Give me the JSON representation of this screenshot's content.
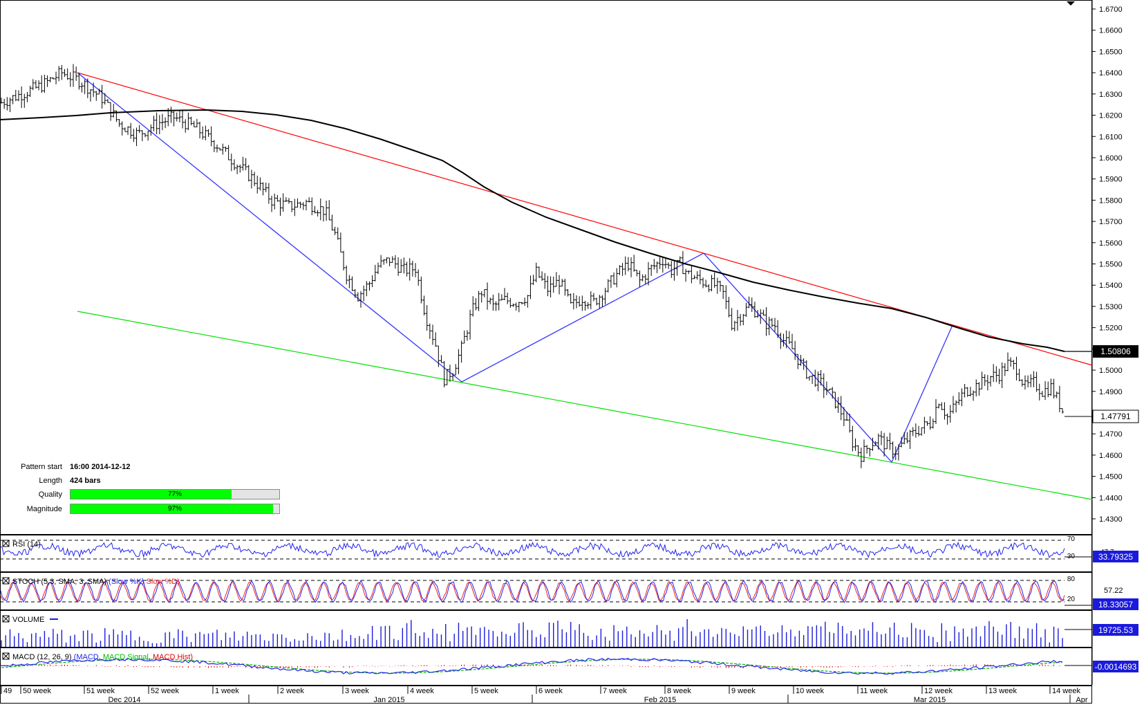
{
  "chart_data": {
    "type": "candlestick",
    "price": {
      "y_ticks": [
        "1.6700",
        "1.6600",
        "1.6500",
        "1.6400",
        "1.6300",
        "1.6200",
        "1.6100",
        "1.6000",
        "1.5900",
        "1.5800",
        "1.5700",
        "1.5600",
        "1.5500",
        "1.5400",
        "1.5300",
        "1.5200",
        "1.5100",
        "1.5000",
        "1.4900",
        "1.4800",
        "1.4700",
        "1.4600",
        "1.4500",
        "1.4400",
        "1.4300"
      ],
      "ylim": [
        1.425,
        1.672
      ],
      "sma_value": "1.50806",
      "last_price": "1.47791",
      "close_path": [
        [
          0,
          1.626
        ],
        [
          14,
          1.63
        ],
        [
          28,
          1.634
        ],
        [
          42,
          1.64
        ],
        [
          55,
          1.636
        ],
        [
          70,
          1.628
        ],
        [
          82,
          1.616
        ],
        [
          95,
          1.611
        ],
        [
          108,
          1.616
        ],
        [
          120,
          1.619
        ],
        [
          135,
          1.614
        ],
        [
          150,
          1.606
        ],
        [
          162,
          1.598
        ],
        [
          175,
          1.59
        ],
        [
          188,
          1.58
        ],
        [
          200,
          1.577
        ],
        [
          212,
          1.579
        ],
        [
          225,
          1.575
        ],
        [
          232,
          1.564
        ],
        [
          240,
          1.545
        ],
        [
          248,
          1.535
        ],
        [
          256,
          1.541
        ],
        [
          262,
          1.549
        ],
        [
          270,
          1.552
        ],
        [
          280,
          1.547
        ],
        [
          288,
          1.548
        ],
        [
          295,
          1.526
        ],
        [
          302,
          1.512
        ],
        [
          308,
          1.496
        ],
        [
          314,
          1.5
        ],
        [
          320,
          1.51
        ],
        [
          327,
          1.527
        ],
        [
          334,
          1.537
        ],
        [
          342,
          1.53
        ],
        [
          350,
          1.533
        ],
        [
          358,
          1.532
        ],
        [
          366,
          1.535
        ],
        [
          372,
          1.546
        ],
        [
          380,
          1.538
        ],
        [
          388,
          1.542
        ],
        [
          396,
          1.53
        ],
        [
          404,
          1.534
        ],
        [
          412,
          1.532
        ],
        [
          420,
          1.538
        ],
        [
          428,
          1.545
        ],
        [
          436,
          1.55
        ],
        [
          444,
          1.542
        ],
        [
          452,
          1.548
        ],
        [
          460,
          1.552
        ],
        [
          466,
          1.547
        ],
        [
          472,
          1.55
        ],
        [
          478,
          1.545
        ],
        [
          484,
          1.543
        ],
        [
          490,
          1.541
        ],
        [
          496,
          1.54
        ],
        [
          502,
          1.536
        ],
        [
          508,
          1.522
        ],
        [
          514,
          1.526
        ],
        [
          520,
          1.53
        ],
        [
          526,
          1.527
        ],
        [
          532,
          1.522
        ],
        [
          538,
          1.521
        ],
        [
          544,
          1.514
        ],
        [
          550,
          1.51
        ],
        [
          556,
          1.503
        ],
        [
          562,
          1.497
        ],
        [
          568,
          1.495
        ],
        [
          574,
          1.491
        ],
        [
          580,
          1.485
        ],
        [
          586,
          1.478
        ],
        [
          592,
          1.466
        ],
        [
          598,
          1.46
        ],
        [
          604,
          1.465
        ],
        [
          610,
          1.468
        ],
        [
          616,
          1.464
        ],
        [
          622,
          1.462
        ],
        [
          628,
          1.466
        ],
        [
          634,
          1.47
        ],
        [
          640,
          1.473
        ],
        [
          646,
          1.475
        ],
        [
          652,
          1.486
        ],
        [
          658,
          1.478
        ],
        [
          664,
          1.484
        ],
        [
          670,
          1.49
        ],
        [
          676,
          1.492
        ],
        [
          682,
          1.494
        ],
        [
          688,
          1.497
        ],
        [
          694,
          1.498
        ],
        [
          700,
          1.503
        ],
        [
          706,
          1.501
        ],
        [
          712,
          1.492
        ],
        [
          718,
          1.494
        ],
        [
          724,
          1.49
        ],
        [
          730,
          1.492
        ],
        [
          736,
          1.484
        ],
        [
          740,
          1.478
        ]
      ]
    },
    "pattern": {
      "pattern_start_label": "Pattern start",
      "pattern_start": "16:00 2014-12-12",
      "length_label": "Length",
      "length": "424 bars",
      "quality_label": "Quality",
      "quality": "77%",
      "quality_value": 0.77,
      "magnitude_label": "Magnitude",
      "magnitude": "97%",
      "magnitude_value": 0.97
    },
    "rsi": {
      "label": "RSI (14)",
      "levels": [
        "70",
        "30"
      ],
      "value": "33.79325",
      "side_value": "47.7"
    },
    "stoch": {
      "label_main": "STOCH (5,3, SMA, 3, SMA)",
      "label_k": "(Slow %K)",
      "label_d": "Slow %D)",
      "levels": [
        "80",
        "20"
      ],
      "value": "18.33057",
      "side_value": "57.22"
    },
    "volume": {
      "label": "VOLUME",
      "value": "19725.53"
    },
    "macd": {
      "label_main": "MACD (12, 26, 9)",
      "label_macd": "(MACD",
      "label_signal": "MACD Signal",
      "label_hist": "MACD Hist)",
      "value": "-0.0014693"
    },
    "x_weeks": [
      "49",
      "50 week",
      "51 week",
      "52 week",
      "1 week",
      "2 week",
      "3 week",
      "4 week",
      "5 week",
      "6 week",
      "7 week",
      "8 week",
      "9 week",
      "10 week",
      "11 week",
      "12 week",
      "13 week",
      "14 week"
    ],
    "x_months": [
      "Dec 2014",
      "Jan 2015",
      "Feb 2015",
      "Mar 2015",
      "Apr"
    ]
  },
  "colors": {
    "trend_upper": "#ff0000",
    "trend_lower": "#00e000",
    "zigzag": "#3333ff",
    "sma": "#000000",
    "rsi_line": "#2222ee",
    "stoch_k": "#2222ee",
    "stoch_d": "#ee2222",
    "volume": "#1a1adc",
    "macd_hist": "#dd0000",
    "macd_line": "#2222ee",
    "macd_signal": "#00bb00",
    "value_box": "#1a1adc"
  }
}
